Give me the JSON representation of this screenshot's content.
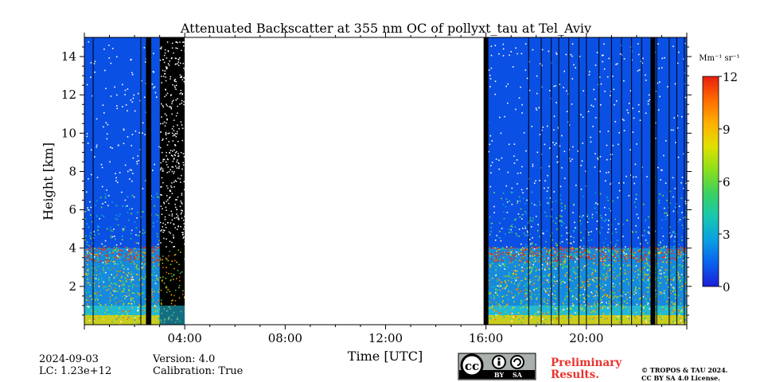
{
  "chart_data": {
    "type": "heatmap",
    "title": "Attenuated Backscatter at 355 nm OC of pollyxt_tau at Tel_Aviv",
    "xlabel": "Time [UTC]",
    "ylabel": "Height [km]",
    "xlim_hours": [
      0,
      24
    ],
    "ylim_km": [
      0,
      15
    ],
    "x_ticks": [
      {
        "hour": 4,
        "label": "04:00"
      },
      {
        "hour": 8,
        "label": "08:00"
      },
      {
        "hour": 12,
        "label": "12:00"
      },
      {
        "hour": 16,
        "label": "16:00"
      },
      {
        "hour": 20,
        "label": "20:00"
      }
    ],
    "y_ticks": [
      {
        "value": 2,
        "label": "2"
      },
      {
        "value": 4,
        "label": "4"
      },
      {
        "value": 6,
        "label": "6"
      },
      {
        "value": 8,
        "label": "8"
      },
      {
        "value": 10,
        "label": "10"
      },
      {
        "value": 12,
        "label": "12"
      },
      {
        "value": 14,
        "label": "14"
      }
    ],
    "colorbar": {
      "unit_label": "Mm⁻¹ sr⁻¹",
      "range": [
        0,
        12
      ],
      "ticks": [
        {
          "value": 0,
          "label": "0"
        },
        {
          "value": 3,
          "label": "3"
        },
        {
          "value": 6,
          "label": "6"
        },
        {
          "value": 9,
          "label": "9"
        },
        {
          "value": 12,
          "label": "12"
        }
      ],
      "colormap": [
        "#1b1fd6",
        "#0a60ee",
        "#0aa0e0",
        "#18c8b0",
        "#3cd060",
        "#8be01c",
        "#e0e000",
        "#ffb000",
        "#ff6a00",
        "#e81e0e"
      ]
    },
    "colors": {
      "background_signal": "#0a50e4",
      "boundary_layer": "#22b8d8",
      "surface_layer": "#e8d000",
      "no_data": "#ffffff",
      "gap_line": "#000000"
    },
    "data_segments": [
      {
        "start_hour": 0,
        "end_hour": 3.0,
        "status": "measurement"
      },
      {
        "start_hour": 3.0,
        "end_hour": 4.0,
        "status": "low signal / noise"
      },
      {
        "start_hour": 4.0,
        "end_hour": 16.0,
        "status": "no data"
      },
      {
        "start_hour": 16.0,
        "end_hour": 24.0,
        "status": "measurement"
      }
    ],
    "gap_lines_hours": [
      0.35,
      2.25,
      2.65,
      16.05,
      17.7,
      18.2,
      18.6,
      18.9,
      19.3,
      19.7,
      20.0,
      20.5,
      21.0,
      21.4,
      21.8,
      22.2,
      22.8,
      23.3,
      23.6,
      23.9
    ],
    "gap_bars_hours": [
      2.55,
      16.0,
      22.65
    ],
    "aerosol_layer_top_km": 4.0,
    "boundary_layer_top_km": 1.0
  },
  "info": {
    "date": "2024-09-03",
    "lc": "LC: 1.23e+12",
    "version": "Version: 4.0",
    "calibration": "Calibration: True"
  },
  "license": {
    "badge_by": "BY",
    "badge_sa": "SA",
    "preliminary_line1": "Preliminary",
    "preliminary_line2": "Results.",
    "copyright_line1": "© TROPOS & TAU 2024.",
    "copyright_line2": "CC BY SA 4.0 License."
  }
}
